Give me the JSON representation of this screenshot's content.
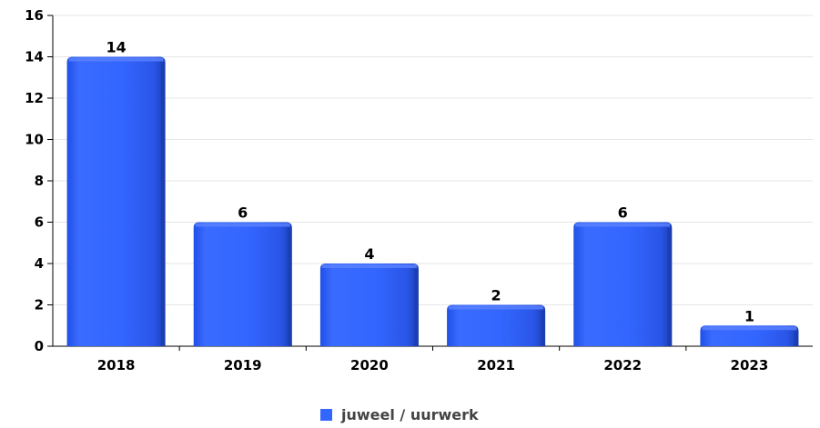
{
  "chart_data": {
    "type": "bar",
    "title": "",
    "xlabel": "",
    "ylabel": "",
    "categories": [
      "2018",
      "2019",
      "2020",
      "2021",
      "2022",
      "2023"
    ],
    "series": [
      {
        "name": "juweel / uurwerk",
        "values": [
          14,
          6,
          4,
          2,
          6,
          1
        ],
        "color": "#3366ff"
      }
    ],
    "ylim": [
      0,
      16
    ],
    "yticks": [
      0,
      2,
      4,
      6,
      8,
      10,
      12,
      14,
      16
    ],
    "data_labels": [
      "14",
      "6",
      "4",
      "2",
      "6",
      "1"
    ],
    "grid": true,
    "legend_position": "bottom-center"
  }
}
